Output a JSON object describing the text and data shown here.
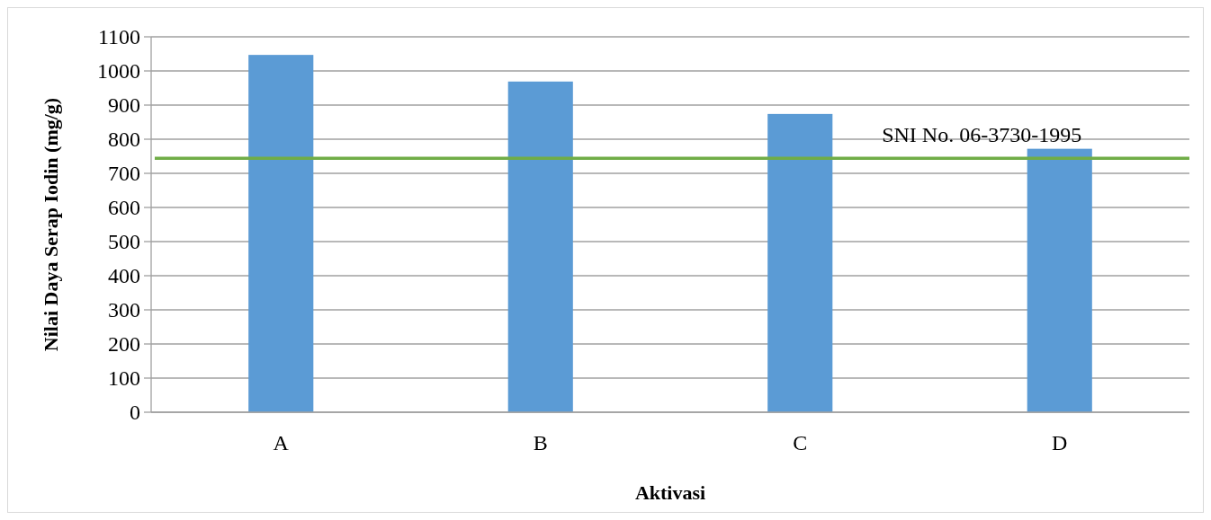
{
  "chart_data": {
    "type": "bar",
    "xlabel": "Aktivasi",
    "ylabel": "Nilai Daya Serap Iodin (mg/g)",
    "categories": [
      "A",
      "B",
      "C",
      "D"
    ],
    "values": [
      1047,
      969,
      874,
      772
    ],
    "color": "#5b9bd5",
    "ylim": [
      0,
      1100
    ],
    "yticks": [
      0,
      100,
      200,
      300,
      400,
      500,
      600,
      700,
      800,
      900,
      1000,
      1100
    ],
    "grid": "y",
    "ref_lines": [
      {
        "axis": "y",
        "value": 744,
        "label": "SNI No. 06-3730-1995",
        "color": "#70ad47"
      }
    ]
  }
}
